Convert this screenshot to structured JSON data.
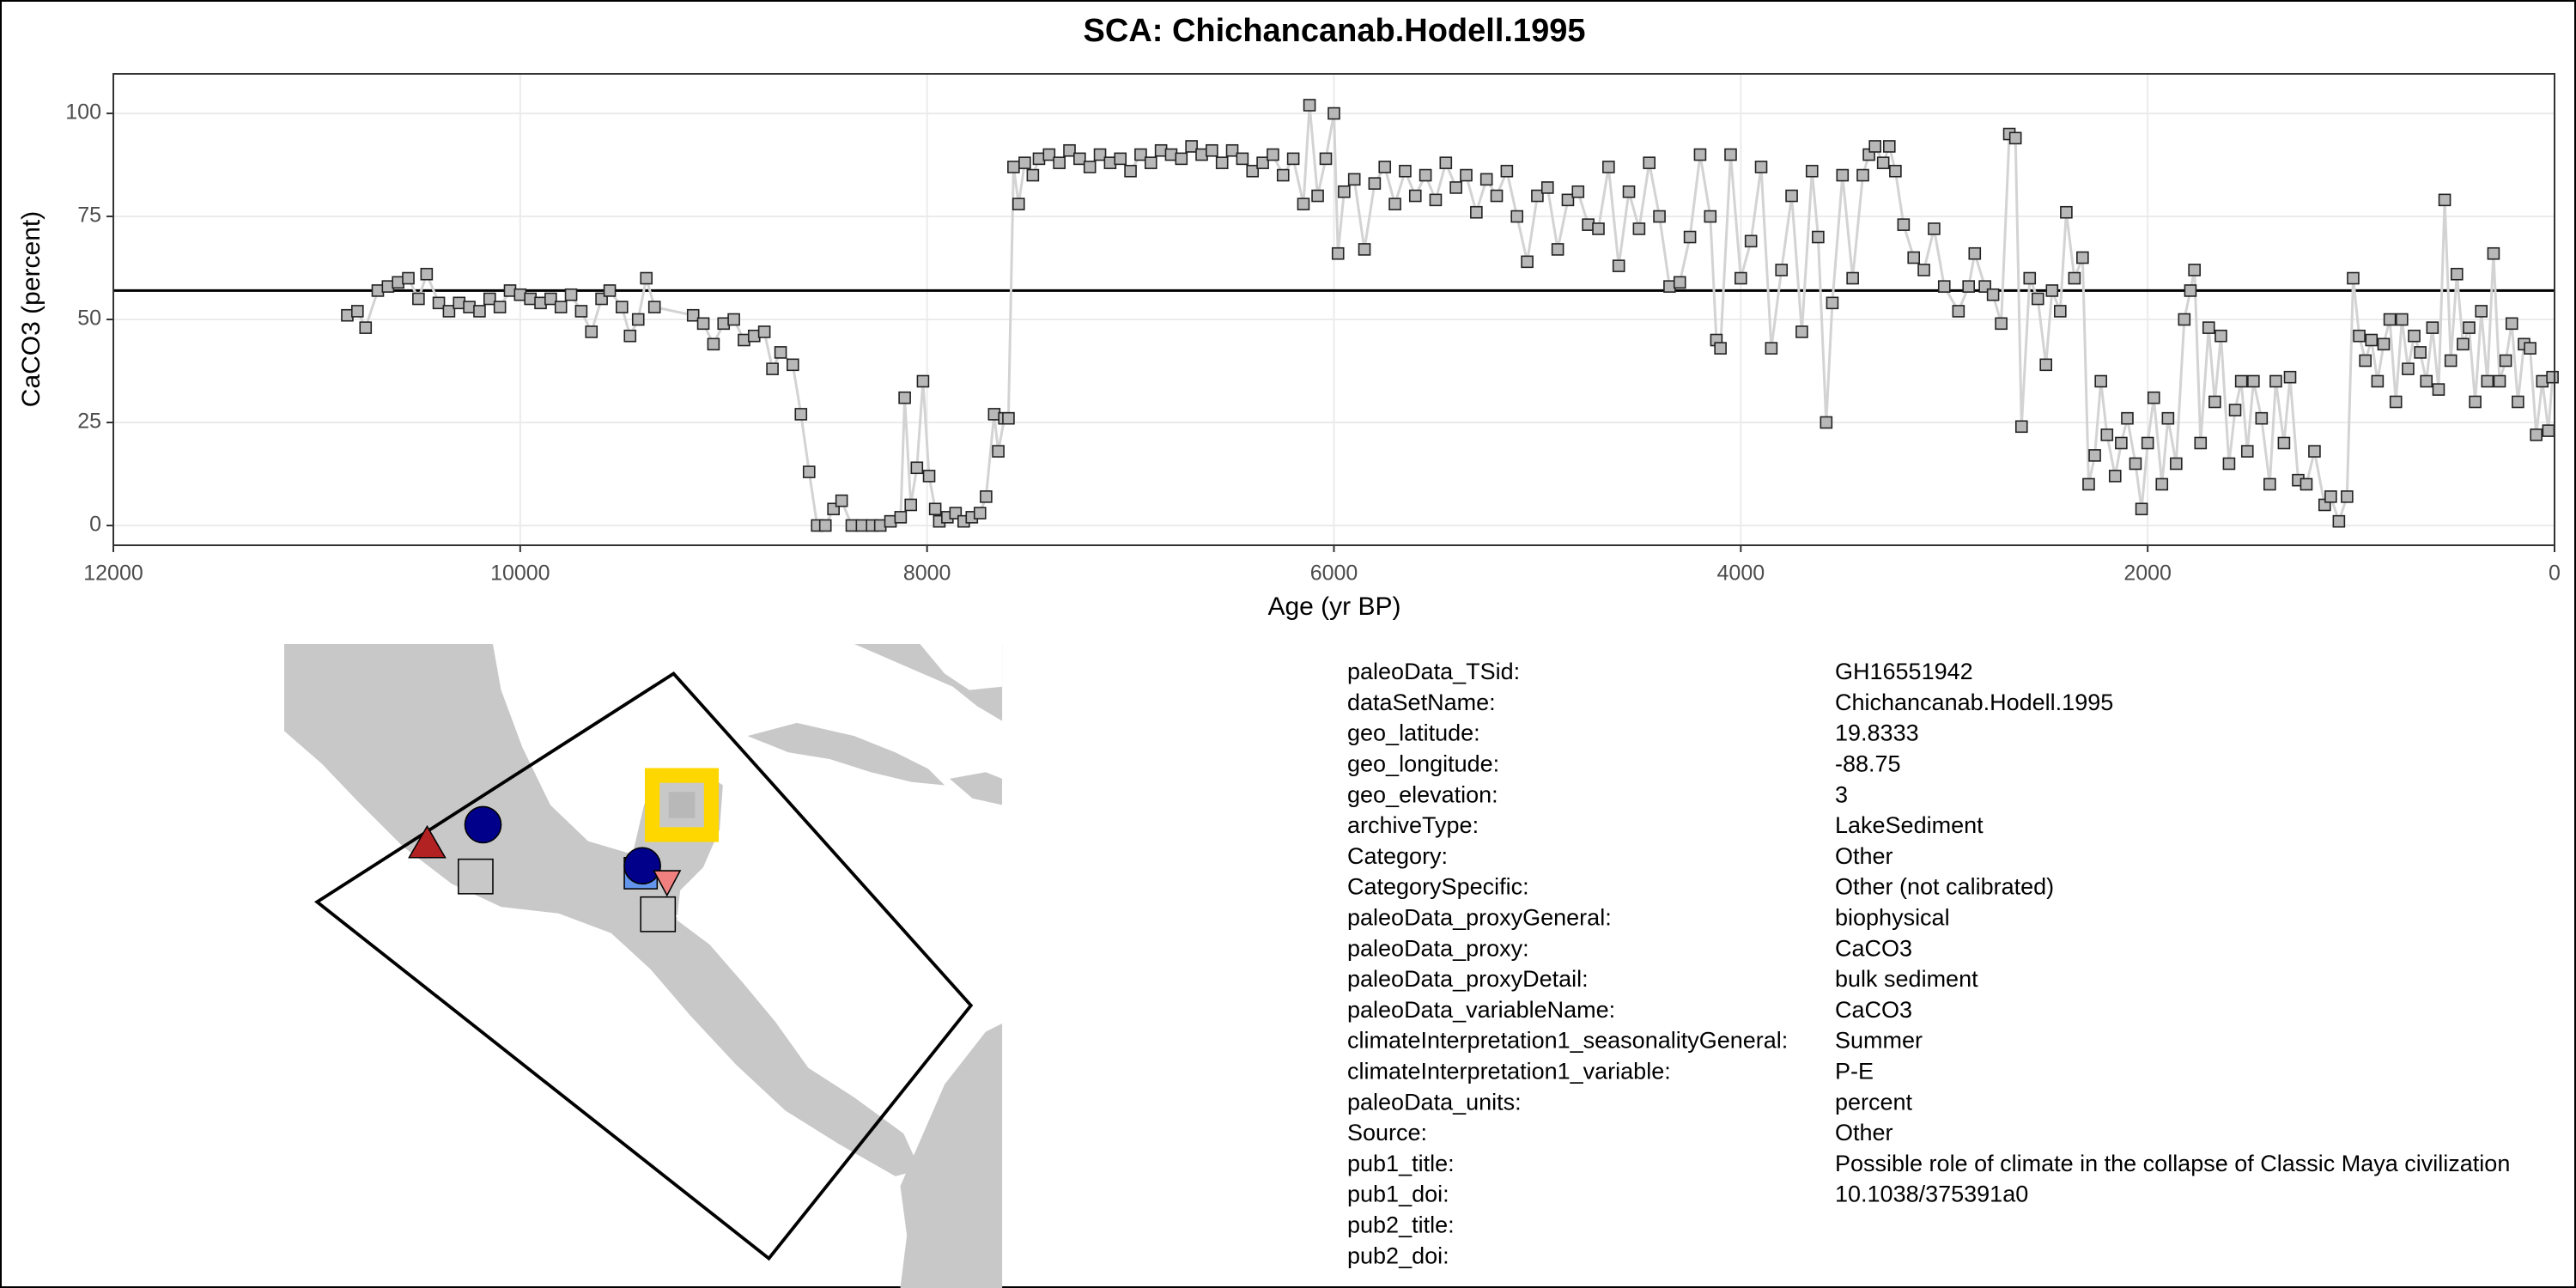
{
  "chart_data": {
    "type": "line",
    "title": "SCA: Chichancanab.Hodell.1995",
    "x_label": "Age (yr BP)",
    "y_label": "CaCO3 (percent)",
    "line_color": "#d3d3d3",
    "marker_color": "#b8b8b8",
    "reference_line": 57,
    "xlim": [
      12000,
      0
    ],
    "xticks": [
      12000,
      10000,
      8000,
      6000,
      4000,
      2000,
      0
    ],
    "ylim": [
      -4.8,
      109.6
    ],
    "yticks": [
      0,
      25,
      50,
      75,
      100
    ],
    "grid": true,
    "x": [
      10850,
      10800,
      10760,
      10700,
      10650,
      10600,
      10550,
      10500,
      10460,
      10400,
      10350,
      10300,
      10250,
      10200,
      10150,
      10100,
      10050,
      10000,
      9950,
      9900,
      9850,
      9800,
      9750,
      9700,
      9650,
      9600,
      9560,
      9500,
      9460,
      9420,
      9380,
      9340,
      9150,
      9100,
      9050,
      9000,
      8950,
      8900,
      8850,
      8800,
      8760,
      8720,
      8660,
      8620,
      8580,
      8540,
      8500,
      8460,
      8420,
      8370,
      8320,
      8270,
      8230,
      8180,
      8130,
      8110,
      8080,
      8050,
      8020,
      7990,
      7960,
      7940,
      7900,
      7860,
      7820,
      7780,
      7740,
      7710,
      7670,
      7650,
      7620,
      7600,
      7575,
      7550,
      7520,
      7480,
      7450,
      7400,
      7350,
      7300,
      7250,
      7200,
      7150,
      7100,
      7050,
      7000,
      6950,
      6900,
      6850,
      6800,
      6750,
      6700,
      6650,
      6600,
      6550,
      6500,
      6450,
      6400,
      6350,
      6300,
      6250,
      6200,
      6150,
      6120,
      6080,
      6040,
      6000,
      5980,
      5950,
      5900,
      5850,
      5800,
      5750,
      5700,
      5650,
      5600,
      5550,
      5500,
      5450,
      5400,
      5350,
      5300,
      5250,
      5200,
      5150,
      5100,
      5050,
      5000,
      4950,
      4900,
      4850,
      4800,
      4750,
      4700,
      4650,
      4600,
      4550,
      4500,
      4450,
      4400,
      4350,
      4300,
      4250,
      4200,
      4150,
      4120,
      4100,
      4050,
      4000,
      3950,
      3900,
      3850,
      3800,
      3750,
      3700,
      3650,
      3620,
      3580,
      3550,
      3500,
      3450,
      3400,
      3370,
      3340,
      3300,
      3270,
      3240,
      3200,
      3150,
      3100,
      3050,
      3000,
      2930,
      2880,
      2850,
      2800,
      2760,
      2720,
      2680,
      2650,
      2620,
      2580,
      2540,
      2500,
      2470,
      2430,
      2400,
      2360,
      2320,
      2290,
      2260,
      2230,
      2200,
      2160,
      2130,
      2100,
      2060,
      2030,
      2000,
      1970,
      1930,
      1900,
      1860,
      1820,
      1790,
      1770,
      1740,
      1700,
      1670,
      1640,
      1600,
      1570,
      1540,
      1510,
      1480,
      1440,
      1400,
      1370,
      1330,
      1300,
      1260,
      1220,
      1180,
      1130,
      1100,
      1060,
      1020,
      990,
      960,
      930,
      900,
      870,
      840,
      810,
      780,
      750,
      720,
      690,
      660,
      630,
      600,
      570,
      540,
      510,
      480,
      450,
      420,
      390,
      360,
      330,
      300,
      270,
      240,
      210,
      180,
      150,
      120,
      90,
      60,
      30,
      10
    ],
    "values": [
      51,
      52,
      48,
      57,
      58,
      59,
      60,
      55,
      61,
      54,
      52,
      54,
      53,
      52,
      55,
      53,
      57,
      56,
      55,
      54,
      55,
      53,
      56,
      52,
      47,
      55,
      57,
      53,
      46,
      50,
      60,
      53,
      51,
      49,
      44,
      49,
      50,
      45,
      46,
      47,
      38,
      42,
      39,
      27,
      13,
      0,
      0,
      4,
      6,
      0,
      0,
      0,
      0,
      1,
      2,
      31,
      5,
      14,
      35,
      12,
      4,
      1,
      2,
      3,
      1,
      2,
      3,
      7,
      27,
      18,
      26,
      26,
      87,
      78,
      88,
      85,
      89,
      90,
      88,
      91,
      89,
      87,
      90,
      88,
      89,
      86,
      90,
      88,
      91,
      90,
      89,
      92,
      90,
      91,
      88,
      91,
      89,
      86,
      88,
      90,
      85,
      89,
      78,
      102,
      80,
      89,
      100,
      66,
      81,
      84,
      67,
      83,
      87,
      78,
      86,
      80,
      85,
      79,
      88,
      82,
      85,
      76,
      84,
      80,
      86,
      75,
      64,
      80,
      82,
      67,
      79,
      81,
      73,
      72,
      87,
      63,
      81,
      72,
      88,
      75,
      58,
      59,
      70,
      90,
      75,
      45,
      43,
      90,
      60,
      69,
      87,
      43,
      62,
      80,
      47,
      86,
      70,
      25,
      54,
      85,
      60,
      85,
      90,
      92,
      88,
      92,
      86,
      73,
      65,
      62,
      72,
      58,
      52,
      58,
      66,
      58,
      56,
      49,
      95,
      94,
      24,
      60,
      55,
      39,
      57,
      52,
      76,
      60,
      65,
      10,
      17,
      35,
      22,
      12,
      20,
      26,
      15,
      4,
      20,
      31,
      10,
      26,
      15,
      50,
      57,
      62,
      20,
      48,
      30,
      46,
      15,
      28,
      35,
      18,
      35,
      26,
      10,
      35,
      20,
      36,
      11,
      10,
      18,
      5,
      7,
      1,
      7,
      60,
      46,
      40,
      45,
      35,
      44,
      50,
      30,
      50,
      38,
      46,
      42,
      35,
      48,
      33,
      79,
      40,
      61,
      44,
      48,
      30,
      52,
      35,
      66,
      35,
      40,
      49,
      30,
      44,
      43,
      22,
      35,
      23,
      36
    ]
  },
  "metadata": {
    "rows": [
      {
        "key": "paleoData_TSid:",
        "value": "GH16551942"
      },
      {
        "key": "dataSetName:",
        "value": "Chichancanab.Hodell.1995"
      },
      {
        "key": "geo_latitude:",
        "value": "19.8333"
      },
      {
        "key": "geo_longitude:",
        "value": "-88.75"
      },
      {
        "key": "geo_elevation:",
        "value": "3"
      },
      {
        "key": "archiveType:",
        "value": "LakeSediment"
      },
      {
        "key": "Category:",
        "value": "Other"
      },
      {
        "key": "CategorySpecific:",
        "value": "Other (not calibrated)"
      },
      {
        "key": "paleoData_proxyGeneral:",
        "value": "biophysical"
      },
      {
        "key": "paleoData_proxy:",
        "value": "CaCO3"
      },
      {
        "key": "paleoData_proxyDetail:",
        "value": "bulk sediment"
      },
      {
        "key": "paleoData_variableName:",
        "value": "CaCO3"
      },
      {
        "key": "climateInterpretation1_seasonalityGeneral:",
        "value": "Summer"
      },
      {
        "key": "climateInterpretation1_variable:",
        "value": "P-E"
      },
      {
        "key": "paleoData_units:",
        "value": "percent"
      },
      {
        "key": "Source:",
        "value": "Other"
      },
      {
        "key": "pub1_title:",
        "value": "Possible role of climate in the collapse of Classic Maya civilization"
      },
      {
        "key": "pub1_doi:",
        "value": "10.1038/375391a0"
      },
      {
        "key": "pub2_title:"
      },
      {
        "key": "pub2_doi:"
      }
    ]
  }
}
